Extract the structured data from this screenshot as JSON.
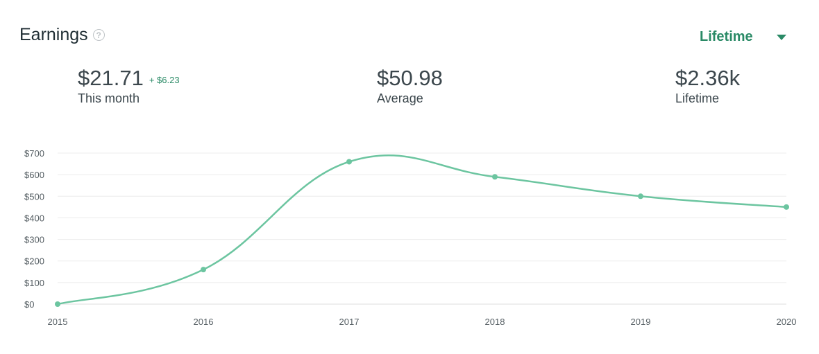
{
  "header": {
    "title": "Earnings",
    "help_icon": "question-circle-icon"
  },
  "period": {
    "selected": "Lifetime",
    "icon": "caret-down-icon"
  },
  "stats": {
    "this_month": {
      "value": "$21.71",
      "delta": "+ $6.23",
      "label": "This month"
    },
    "average": {
      "value": "$50.98",
      "label": "Average"
    },
    "lifetime": {
      "value": "$2.36k",
      "label": "Lifetime"
    }
  },
  "colors": {
    "accent": "#2a8a66",
    "line": "#6cc5a0",
    "grid": "#ececec"
  },
  "chart_data": {
    "type": "line",
    "x": [
      "2015",
      "2016",
      "2017",
      "2018",
      "2019",
      "2020"
    ],
    "series": [
      {
        "values": [
          0,
          160,
          660,
          590,
          500,
          450
        ]
      }
    ],
    "ytick_labels": [
      "$0",
      "$100",
      "$200",
      "$300",
      "$400",
      "$500",
      "$600",
      "$700"
    ],
    "ytick_values": [
      0,
      100,
      200,
      300,
      400,
      500,
      600,
      700
    ],
    "ylim": [
      0,
      700
    ],
    "grid": true,
    "smooth": true
  }
}
